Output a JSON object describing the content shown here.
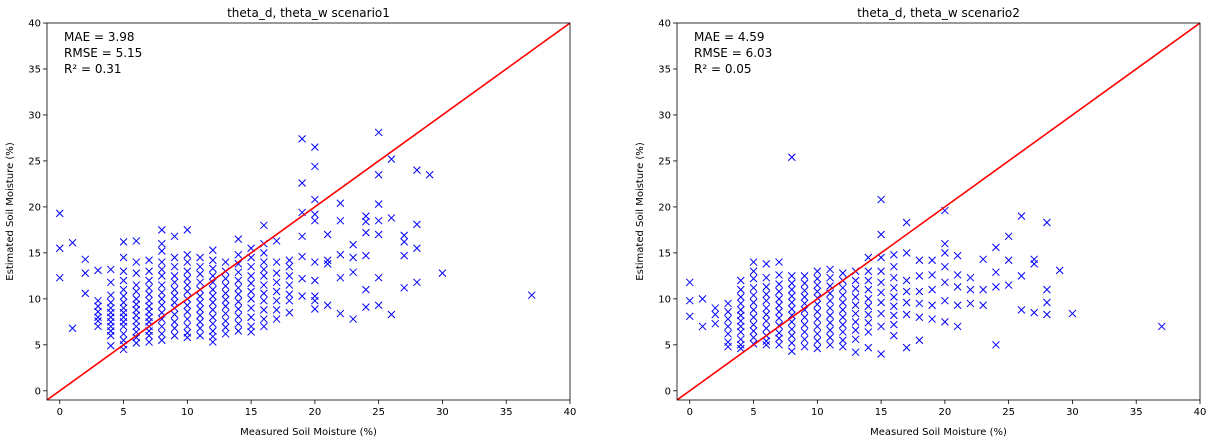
{
  "chart_data": [
    {
      "type": "scatter",
      "title": "theta_d, theta_w scenario1",
      "xlabel": "Measured Soil Moisture (%)",
      "ylabel": "Estimated Soil Moisture (%)",
      "xlim": [
        -1,
        40
      ],
      "ylim": [
        -1,
        40
      ],
      "xticks": [
        0,
        5,
        10,
        15,
        20,
        25,
        30,
        35,
        40
      ],
      "yticks": [
        0,
        5,
        10,
        15,
        20,
        25,
        30,
        35,
        40
      ],
      "annotations": [
        "MAE = 3.98",
        "RMSE = 5.15",
        "R² = 0.31"
      ],
      "reference_line": {
        "from": [
          -1,
          -1
        ],
        "to": [
          40,
          40
        ],
        "color": "#ff0000"
      },
      "marker": "x",
      "marker_color": "#0000ff",
      "grid": false,
      "series": [
        {
          "x": [
            0,
            0,
            0,
            1,
            1,
            2,
            2,
            2,
            3,
            3,
            3,
            3,
            3,
            3,
            3,
            4,
            4,
            4,
            4,
            4,
            4,
            4,
            4,
            4,
            4,
            4,
            4,
            5,
            5,
            5,
            5,
            5,
            5,
            5,
            5,
            5,
            5,
            5,
            5,
            5,
            5,
            5,
            5,
            6,
            6,
            6,
            6,
            6,
            6,
            6,
            6,
            6,
            6,
            6,
            6,
            6,
            6,
            7,
            7,
            7,
            7,
            7,
            7,
            7,
            7,
            7,
            7,
            7,
            7,
            7,
            7,
            8,
            8,
            8,
            8,
            8,
            8,
            8,
            8,
            8,
            8,
            8,
            8,
            8,
            8,
            8,
            9,
            9,
            9,
            9,
            9,
            9,
            9,
            9,
            9,
            9,
            9,
            9,
            9,
            10,
            10,
            10,
            10,
            10,
            10,
            10,
            10,
            10,
            10,
            10,
            10,
            10,
            10,
            11,
            11,
            11,
            11,
            11,
            11,
            11,
            11,
            11,
            11,
            11,
            11,
            12,
            12,
            12,
            12,
            12,
            12,
            12,
            12,
            12,
            12,
            12,
            12,
            12,
            12,
            13,
            13,
            13,
            13,
            13,
            13,
            13,
            13,
            13,
            13,
            13,
            14,
            14,
            14,
            14,
            14,
            14,
            14,
            14,
            14,
            14,
            14,
            14,
            15,
            15,
            15,
            15,
            15,
            15,
            15,
            15,
            15,
            15,
            15,
            16,
            16,
            16,
            16,
            16,
            16,
            16,
            16,
            16,
            16,
            16,
            16,
            17,
            17,
            17,
            17,
            17,
            17,
            17,
            17,
            18,
            18,
            18,
            18,
            18,
            18,
            18,
            19,
            19,
            19,
            19,
            19,
            19,
            19,
            20,
            20,
            20,
            20,
            20,
            20,
            20,
            20,
            20,
            20,
            21,
            21,
            21,
            21,
            22,
            22,
            22,
            22,
            22,
            23,
            23,
            23,
            23,
            24,
            24,
            24,
            24,
            24,
            24,
            25,
            25,
            25,
            25,
            25,
            25,
            25,
            26,
            26,
            26,
            27,
            27,
            27,
            27,
            28,
            28,
            28,
            28,
            29,
            30,
            37
          ],
          "y": [
            19.3,
            15.5,
            12.3,
            16.1,
            6.8,
            14.3,
            12.8,
            10.6,
            13.1,
            9.8,
            9.2,
            8.6,
            8.0,
            7.6,
            7.0,
            13.2,
            11.8,
            10.4,
            9.6,
            9.0,
            8.5,
            8.0,
            7.5,
            7.0,
            6.5,
            6.0,
            4.9,
            16.2,
            14.5,
            13.0,
            12.0,
            11.0,
            10.3,
            9.6,
            9.0,
            8.5,
            8.0,
            7.5,
            7.0,
            6.2,
            5.5,
            5.0,
            4.5,
            16.3,
            14.0,
            12.8,
            11.5,
            10.8,
            10.0,
            9.4,
            8.8,
            8.2,
            7.6,
            7.0,
            6.4,
            5.8,
            5.2,
            14.2,
            13.0,
            12.0,
            11.2,
            10.5,
            9.8,
            9.2,
            8.6,
            8.0,
            7.5,
            7.0,
            6.5,
            6.0,
            5.3,
            17.5,
            16.0,
            15.2,
            14.0,
            13.2,
            12.5,
            11.5,
            10.7,
            10.0,
            9.3,
            8.5,
            7.8,
            7.0,
            6.2,
            5.5,
            16.8,
            14.5,
            13.5,
            12.5,
            11.8,
            11.0,
            10.3,
            9.6,
            9.0,
            8.3,
            7.5,
            6.8,
            6.0,
            17.5,
            14.8,
            14.0,
            13.0,
            12.2,
            11.5,
            10.8,
            10.0,
            9.3,
            8.6,
            7.8,
            7.0,
            6.3,
            5.8,
            14.5,
            13.5,
            12.7,
            11.8,
            11.0,
            10.3,
            9.6,
            8.9,
            8.2,
            7.5,
            6.8,
            6.0,
            15.3,
            14.2,
            13.3,
            12.5,
            11.8,
            11.0,
            10.3,
            9.6,
            8.8,
            8.0,
            7.3,
            6.5,
            5.9,
            5.3,
            14.0,
            13.0,
            12.2,
            11.4,
            10.6,
            9.9,
            9.2,
            8.4,
            7.6,
            6.9,
            6.2,
            16.5,
            14.8,
            13.8,
            12.9,
            12.0,
            11.2,
            10.5,
            9.7,
            8.9,
            8.1,
            7.3,
            6.5,
            15.5,
            14.5,
            13.5,
            12.5,
            11.7,
            10.8,
            10.0,
            9.0,
            8.0,
            7.0,
            6.4,
            18.0,
            16.0,
            15.0,
            14.0,
            13.2,
            12.5,
            11.5,
            10.6,
            9.8,
            8.8,
            7.8,
            7.0,
            16.3,
            14.0,
            12.8,
            11.8,
            10.8,
            9.8,
            8.8,
            7.8,
            14.2,
            13.5,
            12.5,
            11.5,
            10.5,
            9.8,
            8.5,
            27.4,
            22.6,
            19.4,
            16.8,
            14.6,
            12.2,
            10.3,
            26.5,
            24.4,
            20.8,
            19.2,
            18.5,
            14.0,
            12.0,
            10.3,
            9.8,
            8.9,
            17.0,
            14.2,
            13.8,
            9.3,
            20.4,
            18.5,
            14.8,
            12.3,
            8.4,
            15.9,
            14.5,
            12.9,
            7.8,
            19.0,
            18.4,
            17.2,
            14.7,
            11.0,
            9.1,
            28.1,
            23.5,
            20.3,
            18.5,
            17.0,
            12.3,
            9.3,
            25.2,
            18.8,
            8.3,
            16.9,
            16.2,
            14.7,
            11.2,
            24.0,
            18.1,
            15.5,
            11.8,
            23.5,
            12.8,
            10.4
          ]
        }
      ]
    },
    {
      "type": "scatter",
      "title": "theta_d, theta_w scenario2",
      "xlabel": "Measured Soil Moisture (%)",
      "ylabel": "Estimated Soil Moisture (%)",
      "xlim": [
        -1,
        40
      ],
      "ylim": [
        -1,
        40
      ],
      "xticks": [
        0,
        5,
        10,
        15,
        20,
        25,
        30,
        35,
        40
      ],
      "yticks": [
        0,
        5,
        10,
        15,
        20,
        25,
        30,
        35,
        40
      ],
      "annotations": [
        "MAE = 4.59",
        "RMSE = 6.03",
        "R² = 0.05"
      ],
      "reference_line": {
        "from": [
          -1,
          -1
        ],
        "to": [
          40,
          40
        ],
        "color": "#ff0000"
      },
      "marker": "x",
      "marker_color": "#0000ff",
      "grid": false,
      "series": [
        {
          "x": [
            0,
            0,
            0,
            1,
            1,
            2,
            2,
            2,
            3,
            3,
            3,
            3,
            3,
            3,
            3,
            4,
            4,
            4,
            4,
            4,
            4,
            4,
            4,
            4,
            4,
            4,
            4,
            5,
            5,
            5,
            5,
            5,
            5,
            5,
            5,
            5,
            5,
            5,
            5,
            6,
            6,
            6,
            6,
            6,
            6,
            6,
            6,
            6,
            6,
            6,
            6,
            7,
            7,
            7,
            7,
            7,
            7,
            7,
            7,
            7,
            7,
            7,
            7,
            8,
            8,
            8,
            8,
            8,
            8,
            8,
            8,
            8,
            8,
            8,
            8,
            8,
            9,
            9,
            9,
            9,
            9,
            9,
            9,
            9,
            9,
            9,
            9,
            10,
            10,
            10,
            10,
            10,
            10,
            10,
            10,
            10,
            10,
            10,
            10,
            11,
            11,
            11,
            11,
            11,
            11,
            11,
            11,
            11,
            11,
            11,
            12,
            12,
            12,
            12,
            12,
            12,
            12,
            12,
            12,
            12,
            12,
            13,
            13,
            13,
            13,
            13,
            13,
            13,
            13,
            13,
            13,
            14,
            14,
            14,
            14,
            14,
            14,
            14,
            14,
            14,
            14,
            15,
            15,
            15,
            15,
            15,
            15,
            15,
            15,
            15,
            15,
            16,
            16,
            16,
            16,
            16,
            16,
            16,
            16,
            16,
            17,
            17,
            17,
            17,
            17,
            17,
            17,
            18,
            18,
            18,
            18,
            18,
            18,
            19,
            19,
            19,
            19,
            19,
            20,
            20,
            20,
            20,
            20,
            20,
            20,
            21,
            21,
            21,
            21,
            21,
            22,
            22,
            22,
            23,
            23,
            23,
            24,
            24,
            24,
            24,
            25,
            25,
            25,
            26,
            26,
            26,
            27,
            27,
            27,
            28,
            28,
            28,
            28,
            29,
            30,
            37
          ],
          "y": [
            11.8,
            9.8,
            8.1,
            10.0,
            7.0,
            9.0,
            8.3,
            7.3,
            9.5,
            8.6,
            7.8,
            7.0,
            6.2,
            5.3,
            4.8,
            12.0,
            11.0,
            10.2,
            9.5,
            8.8,
            8.2,
            7.6,
            7.0,
            6.4,
            5.6,
            5.0,
            4.6,
            14.0,
            13.0,
            12.2,
            11.2,
            10.4,
            9.6,
            8.8,
            8.0,
            7.2,
            6.5,
            5.8,
            5.1,
            13.8,
            12.3,
            11.3,
            10.5,
            9.8,
            9.0,
            8.3,
            7.6,
            6.8,
            6.0,
            5.4,
            5.0,
            14.0,
            12.6,
            11.6,
            10.8,
            10.0,
            9.3,
            8.6,
            7.9,
            7.1,
            6.3,
            5.7,
            5.0,
            25.4,
            12.5,
            11.7,
            11.0,
            10.3,
            9.6,
            8.9,
            8.2,
            7.5,
            6.7,
            6.0,
            5.2,
            4.3,
            12.5,
            11.7,
            10.9,
            10.2,
            9.5,
            8.8,
            8.0,
            7.2,
            6.4,
            5.6,
            4.8,
            13.0,
            12.2,
            11.5,
            10.8,
            10.1,
            9.4,
            8.6,
            7.8,
            7.0,
            6.2,
            5.4,
            4.6,
            13.2,
            12.3,
            11.4,
            10.6,
            9.8,
            9.0,
            8.2,
            7.4,
            6.6,
            5.8,
            5.0,
            12.8,
            12.0,
            11.2,
            10.4,
            9.6,
            8.8,
            8.0,
            7.2,
            6.4,
            5.5,
            4.8,
            13.0,
            12.0,
            11.1,
            10.2,
            9.3,
            8.4,
            7.5,
            6.6,
            5.6,
            4.2,
            14.5,
            13.0,
            12.0,
            11.0,
            10.0,
            9.2,
            8.3,
            7.4,
            6.4,
            4.7,
            20.8,
            17.0,
            14.5,
            13.0,
            11.8,
            10.7,
            9.6,
            8.4,
            7.0,
            4.0,
            14.8,
            13.5,
            12.3,
            11.2,
            10.2,
            9.2,
            8.2,
            7.2,
            6.0,
            18.3,
            15.0,
            12.0,
            10.8,
            9.6,
            8.3,
            4.7,
            14.2,
            12.5,
            10.8,
            9.5,
            8.0,
            5.5,
            14.2,
            12.6,
            11.0,
            9.3,
            7.8,
            19.6,
            16.0,
            15.0,
            13.5,
            11.8,
            9.8,
            7.5,
            14.7,
            12.6,
            11.3,
            9.3,
            7.0,
            12.3,
            11.0,
            9.5,
            14.3,
            11.0,
            9.3,
            15.6,
            12.9,
            11.3,
            5.0,
            16.8,
            14.2,
            11.5,
            19.0,
            12.5,
            8.8,
            14.3,
            13.8,
            8.5,
            18.3,
            11.0,
            9.6,
            8.3,
            13.1,
            8.4,
            7.0
          ]
        }
      ]
    }
  ]
}
